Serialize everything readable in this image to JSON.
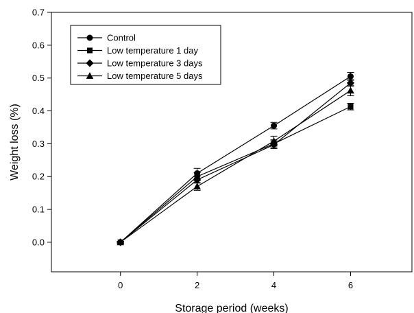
{
  "chart_data": {
    "type": "line",
    "xlabel": "Storage period (weeks)",
    "ylabel": "Weight loss (%)",
    "xlim": [
      -1.8,
      7.6
    ],
    "ylim": [
      -0.09,
      0.7
    ],
    "xticks": [
      "0",
      "2",
      "4",
      "6"
    ],
    "yticks": [
      "0.0",
      "0.1",
      "0.2",
      "0.3",
      "0.4",
      "0.5",
      "0.6",
      "0.7"
    ],
    "x": [
      0,
      2,
      4,
      6
    ],
    "grid": false,
    "legend_position": "top-left",
    "series": [
      {
        "name": "Control",
        "marker": "circle",
        "values": [
          0.0,
          0.21,
          0.355,
          0.505
        ],
        "errors": [
          0.003,
          0.015,
          0.01,
          0.012
        ]
      },
      {
        "name": "Low temperature 1 day",
        "marker": "square",
        "values": [
          0.0,
          0.2,
          0.3,
          0.413
        ],
        "errors": [
          0.003,
          0.012,
          0.012,
          0.01
        ]
      },
      {
        "name": "Low temperature 3 days",
        "marker": "diamond",
        "values": [
          0.0,
          0.19,
          0.297,
          0.485
        ],
        "errors": [
          0.003,
          0.01,
          0.012,
          0.01
        ]
      },
      {
        "name": "Low temperature 5 days",
        "marker": "triangle",
        "values": [
          0.0,
          0.17,
          0.308,
          0.462
        ],
        "errors": [
          0.003,
          0.012,
          0.015,
          0.016
        ]
      }
    ]
  }
}
